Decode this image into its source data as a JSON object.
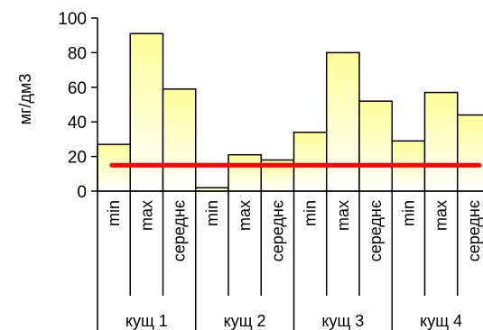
{
  "chart_data": {
    "type": "bar",
    "ylabel": "мг/дм3",
    "ylim": [
      0,
      100
    ],
    "yticks": [
      0,
      20,
      40,
      60,
      80,
      100
    ],
    "groups": [
      {
        "label": "кущ 1",
        "categories": [
          "min",
          "max",
          "середнє"
        ],
        "values": [
          27,
          91,
          59
        ]
      },
      {
        "label": "кущ 2",
        "categories": [
          "min",
          "max",
          "середнє"
        ],
        "values": [
          2,
          21,
          18
        ]
      },
      {
        "label": "кущ 3",
        "categories": [
          "min",
          "max",
          "середнє"
        ],
        "values": [
          34,
          80,
          52
        ]
      },
      {
        "label": "кущ 4",
        "categories": [
          "min",
          "max",
          "середнє"
        ],
        "values": [
          29,
          57,
          44
        ]
      }
    ],
    "reference_line": {
      "value": 15,
      "color": "#ff0000"
    },
    "colors": {
      "bar_top": "#ffff99",
      "bar_bottom": "#ffffff",
      "bar_border": "#000000"
    },
    "grid": false,
    "legend": "none"
  }
}
